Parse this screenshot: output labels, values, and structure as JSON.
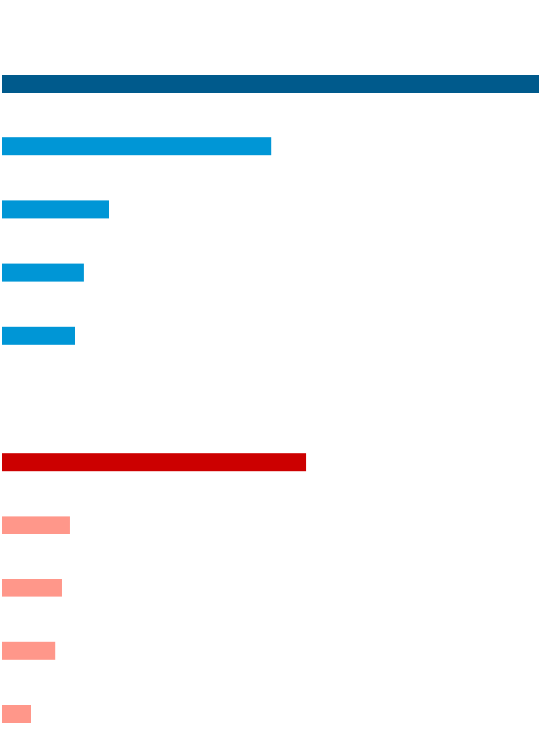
{
  "chart_data": {
    "type": "bar",
    "orientation": "horizontal",
    "categories": [
      null,
      null,
      null,
      null,
      null,
      null,
      null,
      null,
      null,
      null
    ],
    "values": [
      100,
      50.2,
      19.9,
      15.2,
      13.7,
      56.7,
      12.7,
      11.2,
      9.9,
      5.5
    ],
    "colors": [
      "#005a8c",
      "#0096d6",
      "#0096d6",
      "#0096d6",
      "#0096d6",
      "#cc0000",
      "#ff978a",
      "#ff978a",
      "#ff978a",
      "#ff978a"
    ],
    "xlim": [
      0,
      100
    ]
  }
}
